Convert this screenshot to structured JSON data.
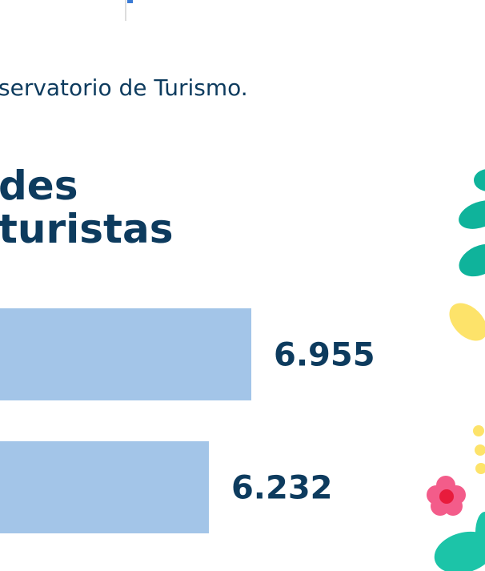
{
  "chart_data": {
    "type": "barh",
    "subtitle": "servatorio de Turismo.",
    "title_lines": [
      "des",
      "turistas"
    ],
    "categories": [
      null,
      null
    ],
    "values": [
      6955,
      6232
    ],
    "value_labels": [
      "6.955",
      "6.232"
    ],
    "color": "#a3c5e8",
    "xlim": [
      0,
      7000
    ]
  }
}
